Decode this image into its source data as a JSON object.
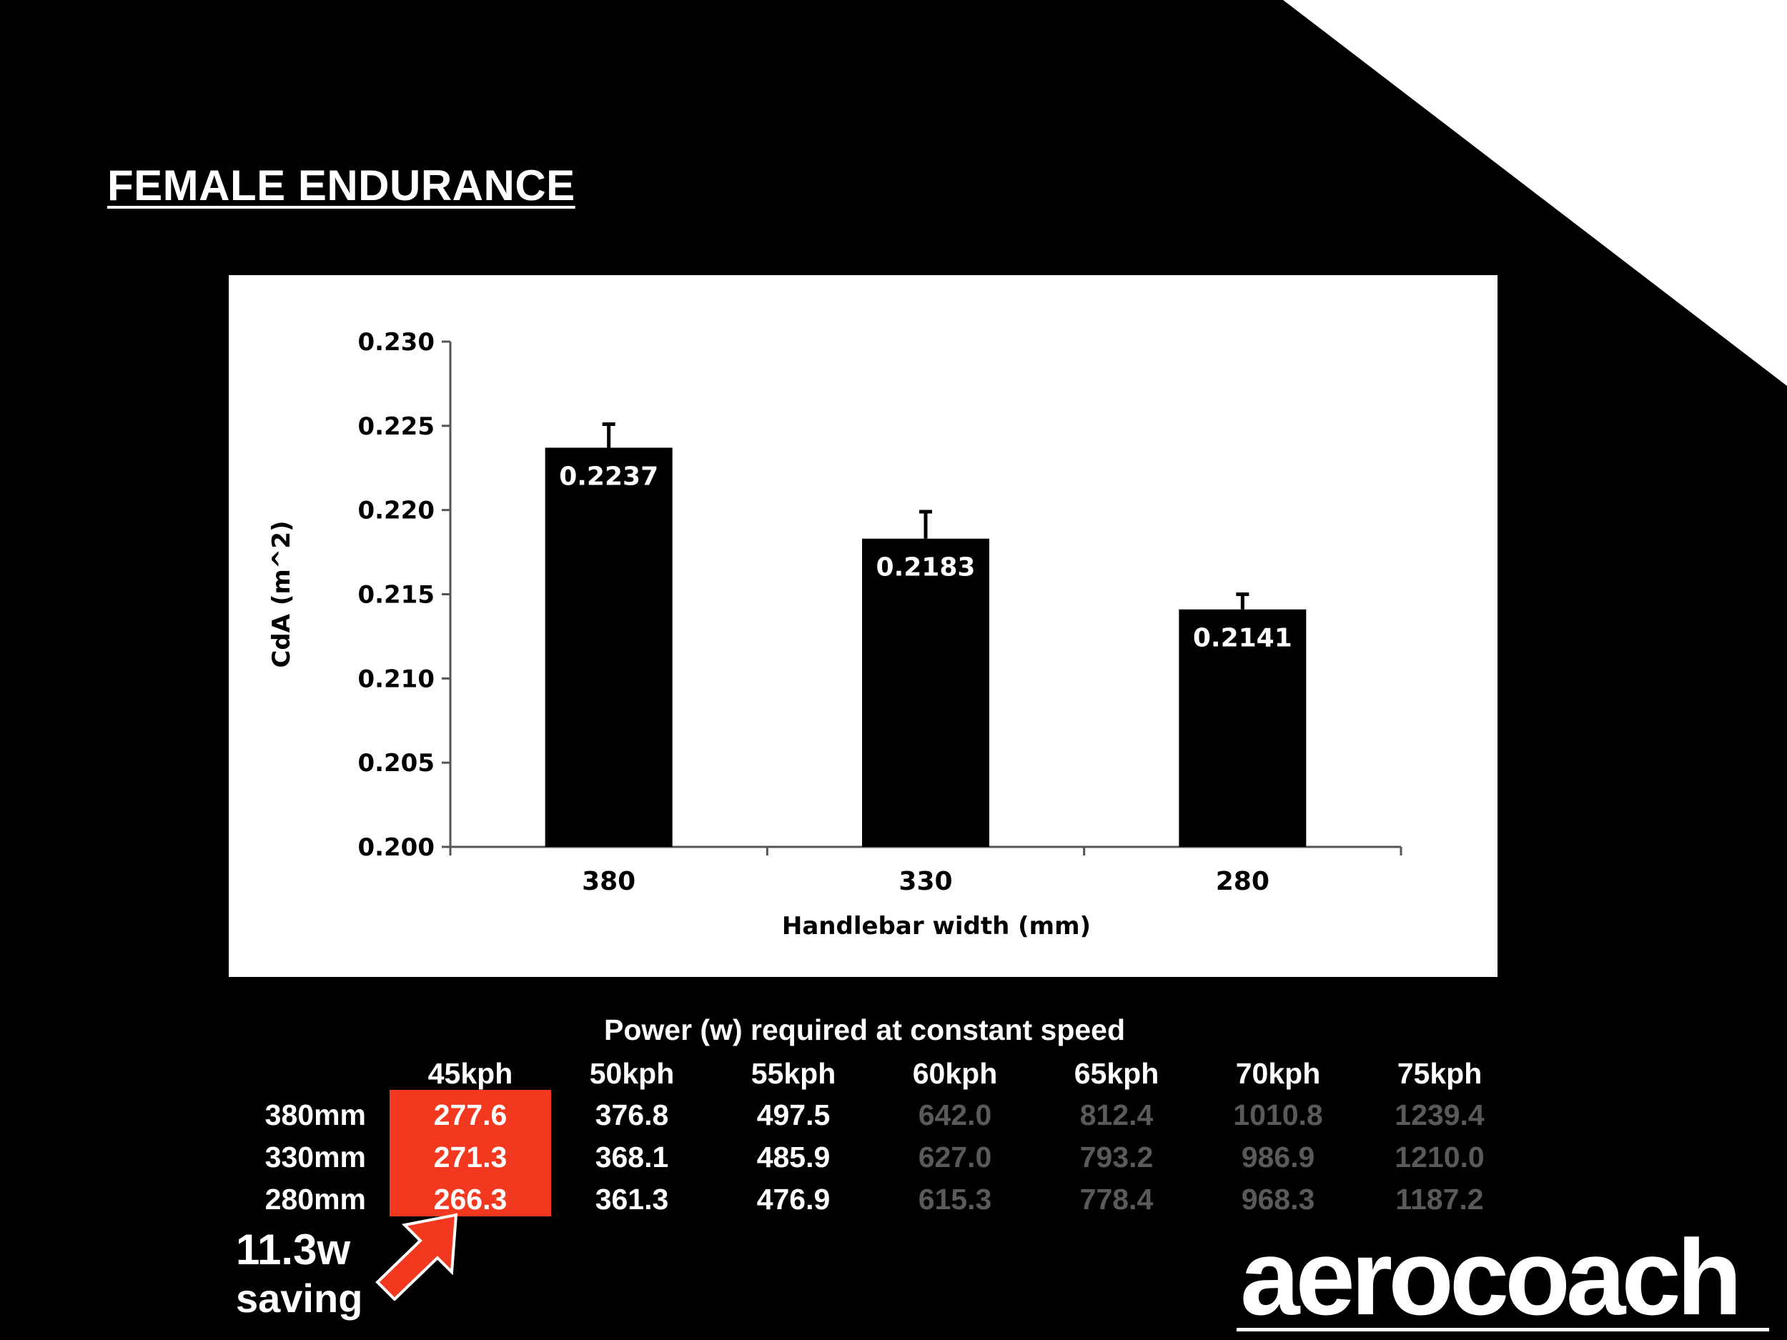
{
  "page": {
    "title": "FEMALE ENDURANCE",
    "logo": "aerocoach"
  },
  "chart_data": {
    "type": "bar",
    "categories": [
      "380",
      "330",
      "280"
    ],
    "values": [
      0.2237,
      0.2183,
      0.2141
    ],
    "error_upper": [
      0.2251,
      0.2199,
      0.215
    ],
    "data_labels": [
      "0.2237",
      "0.2183",
      "0.2141"
    ],
    "xlabel": "Handlebar width (mm)",
    "ylabel": "CdA (m^2)",
    "ylim": [
      0.2,
      0.23
    ],
    "yticks": [
      "0.200",
      "0.205",
      "0.210",
      "0.215",
      "0.220",
      "0.225",
      "0.230"
    ],
    "bar_color": "#000000",
    "grid": false
  },
  "power_table": {
    "title": "Power (w) required at constant speed",
    "columns": [
      "45kph",
      "50kph",
      "55kph",
      "60kph",
      "65kph",
      "70kph",
      "75kph"
    ],
    "rows": [
      {
        "label": "380mm",
        "values": [
          "277.6",
          "376.8",
          "497.5",
          "642.0",
          "812.4",
          "1010.8",
          "1239.4"
        ]
      },
      {
        "label": "330mm",
        "values": [
          "271.3",
          "368.1",
          "485.9",
          "627.0",
          "793.2",
          "986.9",
          "1210.0"
        ]
      },
      {
        "label": "280mm",
        "values": [
          "266.3",
          "361.3",
          "476.9",
          "615.3",
          "778.4",
          "968.3",
          "1187.2"
        ]
      }
    ],
    "highlight_column": "45kph",
    "highlight_color": "#f2391f",
    "dim_columns": [
      "60kph",
      "65kph",
      "70kph",
      "75kph"
    ],
    "dim_color": "#5a5a5a"
  },
  "annotation": {
    "line1": "11.3w",
    "line2": "saving",
    "arrow_color": "#f2391f"
  }
}
